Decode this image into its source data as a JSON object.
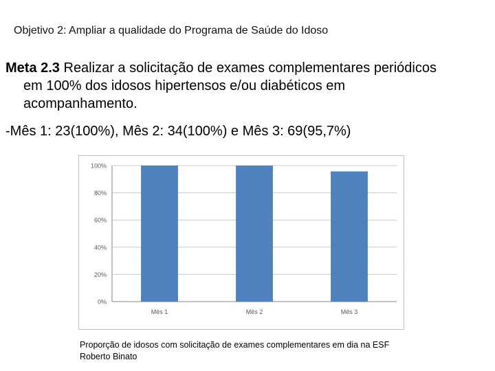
{
  "objective": "Objetivo 2: Ampliar a qualidade do Programa de Saúde do Idoso",
  "goal": {
    "label": "Meta 2.3",
    "line1": " Realizar a solicitação de exames complementares periódicos",
    "line2": "em 100% dos idosos hipertensos e/ou diabéticos em",
    "line3": "acompanhamento."
  },
  "months_summary": "-Mês 1: 23(100%), Mês 2: 34(100%) e Mês 3: 69(95,7%)",
  "caption": "Proporção de idosos com solicitação de exames complementares em dia na ESF Roberto Binato",
  "chart_data": {
    "type": "bar",
    "categories": [
      "Mês 1",
      "Mês 2",
      "Mês 3"
    ],
    "values": [
      100,
      100,
      95.7
    ],
    "ylim": [
      0,
      100
    ],
    "yticks": [
      "0%",
      "20%",
      "40%",
      "60%",
      "80%",
      "100%"
    ],
    "grid": true,
    "legend": "none",
    "bar_color": "#4f81bd",
    "grid_color": "#c8c8c8",
    "axis_color": "#868686",
    "tick_color": "#595959"
  }
}
